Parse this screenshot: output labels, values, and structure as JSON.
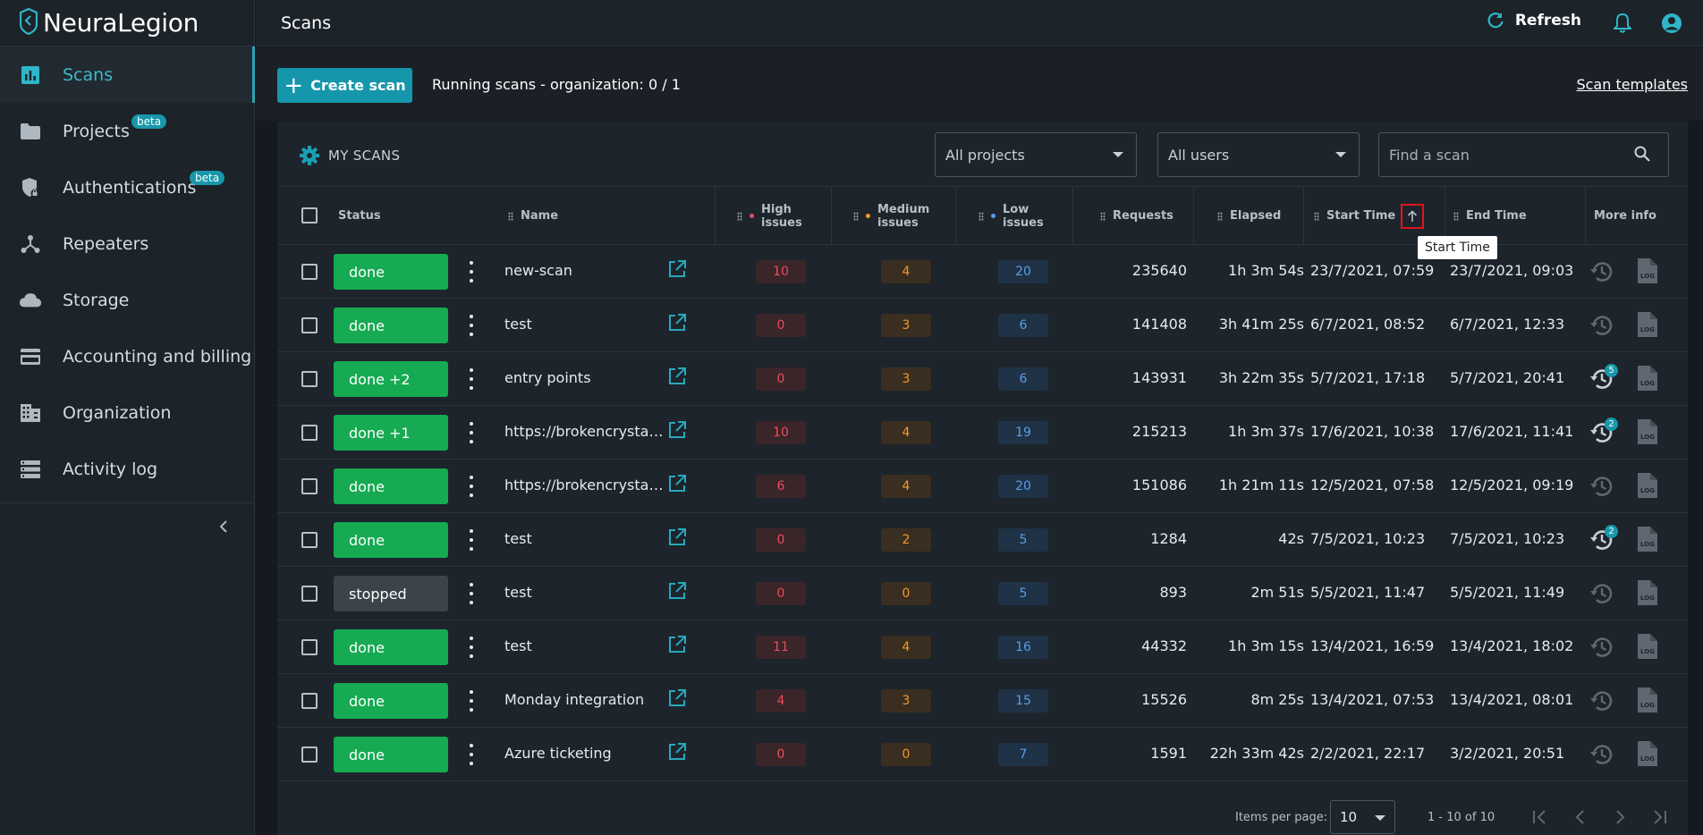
{
  "app": {
    "name": "NeuraLegion"
  },
  "sidebar": {
    "items": [
      {
        "label": "Scans",
        "icon": "bar-chart-icon",
        "active": true,
        "beta": ""
      },
      {
        "label": "Projects",
        "icon": "folder-icon",
        "active": false,
        "beta": "beta"
      },
      {
        "label": "Authentications",
        "icon": "shield-lock-icon",
        "active": false,
        "beta": "beta"
      },
      {
        "label": "Repeaters",
        "icon": "repeater-icon",
        "active": false,
        "beta": ""
      },
      {
        "label": "Storage",
        "icon": "cloud-icon",
        "active": false,
        "beta": ""
      },
      {
        "label": "Accounting and billing",
        "icon": "credit-card-icon",
        "active": false,
        "beta": ""
      },
      {
        "label": "Organization",
        "icon": "building-icon",
        "active": false,
        "beta": ""
      },
      {
        "label": "Activity log",
        "icon": "list-icon",
        "active": false,
        "beta": ""
      }
    ]
  },
  "header": {
    "title": "Scans",
    "refresh_label": "Refresh"
  },
  "actions": {
    "create_label": "Create scan",
    "running_text": "Running scans - organization: 0 / 1",
    "templates_label": "Scan templates"
  },
  "card": {
    "title": "MY SCANS",
    "projects_filter": "All projects",
    "users_filter": "All users",
    "search_placeholder": "Find a scan"
  },
  "columns": {
    "status": "Status",
    "name": "Name",
    "high": "High issues",
    "medium": "Medium issues",
    "low": "Low issues",
    "requests": "Requests",
    "elapsed": "Elapsed",
    "start": "Start Time",
    "end": "End Time",
    "more": "More info"
  },
  "tooltip": "Start Time",
  "colors": {
    "high": "#ec4c5d",
    "medium": "#f39a27",
    "low": "#5b9ce9",
    "done": "#16aa52",
    "accent": "#1696aa"
  },
  "rows": [
    {
      "status": "done",
      "name": "new-scan",
      "high": "10",
      "medium": "4",
      "low": "20",
      "requests": "235640",
      "elapsed": "1h 3m 54s",
      "start": "23/7/2021, 07:59",
      "end": "23/7/2021, 09:03",
      "history": ""
    },
    {
      "status": "done",
      "name": "test",
      "high": "0",
      "medium": "3",
      "low": "6",
      "requests": "141408",
      "elapsed": "3h 41m 25s",
      "start": "6/7/2021, 08:52",
      "end": "6/7/2021, 12:33",
      "history": ""
    },
    {
      "status": "done +2",
      "name": "entry points",
      "high": "0",
      "medium": "3",
      "low": "6",
      "requests": "143931",
      "elapsed": "3h 22m 35s",
      "start": "5/7/2021, 17:18",
      "end": "5/7/2021, 20:41",
      "history": "5"
    },
    {
      "status": "done +1",
      "name": "https://brokencrystals....",
      "high": "10",
      "medium": "4",
      "low": "19",
      "requests": "215213",
      "elapsed": "1h 3m 37s",
      "start": "17/6/2021, 10:38",
      "end": "17/6/2021, 11:41",
      "history": "2"
    },
    {
      "status": "done",
      "name": "https://brokencrystals....",
      "high": "6",
      "medium": "4",
      "low": "20",
      "requests": "151086",
      "elapsed": "1h 21m 11s",
      "start": "12/5/2021, 07:58",
      "end": "12/5/2021, 09:19",
      "history": ""
    },
    {
      "status": "done",
      "name": "test",
      "high": "0",
      "medium": "2",
      "low": "5",
      "requests": "1284",
      "elapsed": "42s",
      "start": "7/5/2021, 10:23",
      "end": "7/5/2021, 10:23",
      "history": "2"
    },
    {
      "status": "stopped",
      "name": "test",
      "high": "0",
      "medium": "0",
      "low": "5",
      "requests": "893",
      "elapsed": "2m 51s",
      "start": "5/5/2021, 11:47",
      "end": "5/5/2021, 11:49",
      "history": ""
    },
    {
      "status": "done",
      "name": "test",
      "high": "11",
      "medium": "4",
      "low": "16",
      "requests": "44332",
      "elapsed": "1h 3m 15s",
      "start": "13/4/2021, 16:59",
      "end": "13/4/2021, 18:02",
      "history": ""
    },
    {
      "status": "done",
      "name": "Monday integration",
      "high": "4",
      "medium": "3",
      "low": "15",
      "requests": "15526",
      "elapsed": "8m 25s",
      "start": "13/4/2021, 07:53",
      "end": "13/4/2021, 08:01",
      "history": ""
    },
    {
      "status": "done",
      "name": "Azure ticketing",
      "high": "0",
      "medium": "0",
      "low": "7",
      "requests": "1591",
      "elapsed": "22h 33m 42s",
      "start": "2/2/2021, 22:17",
      "end": "3/2/2021, 20:51",
      "history": ""
    }
  ],
  "pagination": {
    "items_per_page_label": "Items per page:",
    "items_per_page": "10",
    "range": "1 - 10 of 10"
  }
}
